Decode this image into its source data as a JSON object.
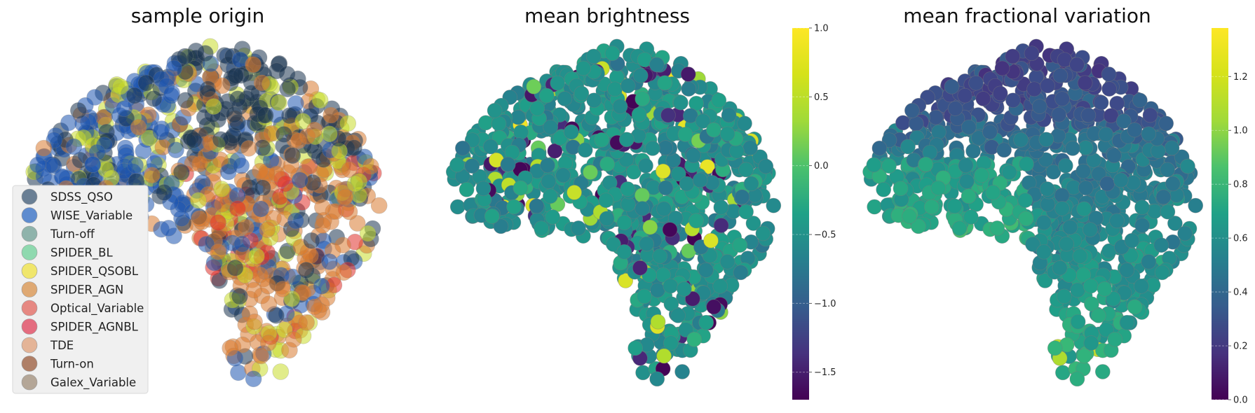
{
  "figure": {
    "titles": [
      "sample origin",
      "mean brightness",
      "mean fractional variation"
    ]
  },
  "chart_data": [
    {
      "type": "scatter",
      "title": "sample origin",
      "xlabel": "",
      "ylabel": "",
      "axes_visible": false,
      "grid": false,
      "legend_placement": "lower-left",
      "legend": [
        {
          "name": "SDSS_QSO",
          "color": "#3d5a75"
        },
        {
          "name": "WISE_Variable",
          "color": "#2f6bc4"
        },
        {
          "name": "Turn-off",
          "color": "#6f9f94"
        },
        {
          "name": "SPIDER_BL",
          "color": "#6fd19a"
        },
        {
          "name": "SPIDER_QSOBL",
          "color": "#f0e340"
        },
        {
          "name": "SPIDER_AGN",
          "color": "#d9924a"
        },
        {
          "name": "Optical_Variable",
          "color": "#e3655e"
        },
        {
          "name": "SPIDER_AGNBL",
          "color": "#e0405a"
        },
        {
          "name": "TDE",
          "color": "#e0a07a"
        },
        {
          "name": "Turn-on",
          "color": "#9a5a3a"
        },
        {
          "name": "Galex_Variable",
          "color": "#a08e7a"
        }
      ],
      "overlay_series": [
        "#1b3550",
        "#1e55b0",
        "#c8dc2a",
        "#d97a30",
        "#e0302a"
      ]
    },
    {
      "type": "scatter",
      "title": "mean brightness",
      "xlabel": "",
      "ylabel": "",
      "axes_visible": false,
      "grid": false,
      "colormap": "viridis",
      "colorbar": {
        "min": -1.7,
        "max": 1.0,
        "ticks": [
          1.0,
          0.5,
          0.0,
          -0.5,
          -1.0,
          -1.5
        ],
        "tick_labels": [
          "1.0",
          "0.5",
          "0.0",
          "−0.5",
          "−1.0",
          "−1.5"
        ]
      },
      "point_value_range": [
        -1.7,
        1.0
      ]
    },
    {
      "type": "scatter",
      "title": "mean fractional variation",
      "xlabel": "",
      "ylabel": "",
      "axes_visible": false,
      "grid": false,
      "colormap": "viridis",
      "colorbar": {
        "min": 0.0,
        "max": 1.38,
        "ticks": [
          1.2,
          1.0,
          0.8,
          0.6,
          0.4,
          0.2,
          0.0
        ],
        "tick_labels": [
          "1.2",
          "1.0",
          "0.8",
          "0.6",
          "0.4",
          "0.2",
          "0.0"
        ]
      },
      "point_value_range": [
        0.0,
        1.38
      ]
    }
  ]
}
